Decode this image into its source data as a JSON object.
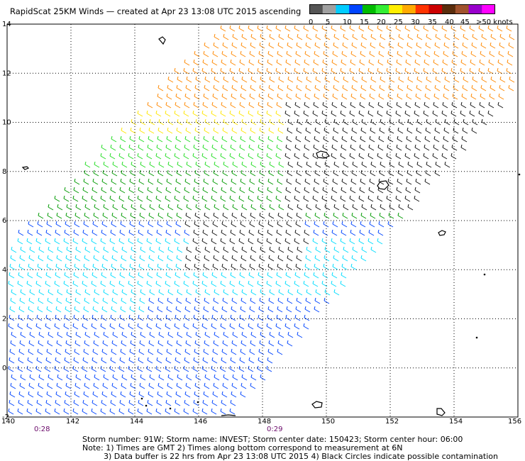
{
  "header": {
    "title": "RapidScat 25KM Winds — created at Apr 23 13:08 UTC 2015 ascending"
  },
  "colorbar": {
    "colors": [
      "#555555",
      "#a0a0a0",
      "#00ccff",
      "#0044ff",
      "#00bb00",
      "#33ee33",
      "#ffee00",
      "#ffaa00",
      "#ff3300",
      "#cc0000",
      "#5a2d0c",
      "#a0522d",
      "#9900cc",
      "#ff00ff"
    ],
    "labels": [
      "0",
      "5",
      "10",
      "15",
      "20",
      "25",
      "30",
      "35",
      "40",
      "45",
      ">50 knots"
    ]
  },
  "map": {
    "lat_labels": [
      "14",
      "12",
      "10",
      "8",
      "6",
      "4",
      "2",
      "0",
      "-2"
    ],
    "lon_labels": [
      "140",
      "142",
      "144",
      "146",
      "148",
      "150",
      "152",
      "154",
      "156"
    ],
    "time_labels": [
      "0:28",
      "0:29"
    ]
  },
  "footer": {
    "line1": "Storm number: 91W;  Storm name: INVEST;  Storm center date: 150423;  Storm center hour: 06:00",
    "line2": "Note: 1) Times are GMT  2) Times along bottom correspond to measurement at 6N",
    "line3": "3) Data buffer is 22 hrs from Apr 23 13:08 UTC 2015   4) Black Circles indicate possible contamination"
  }
}
